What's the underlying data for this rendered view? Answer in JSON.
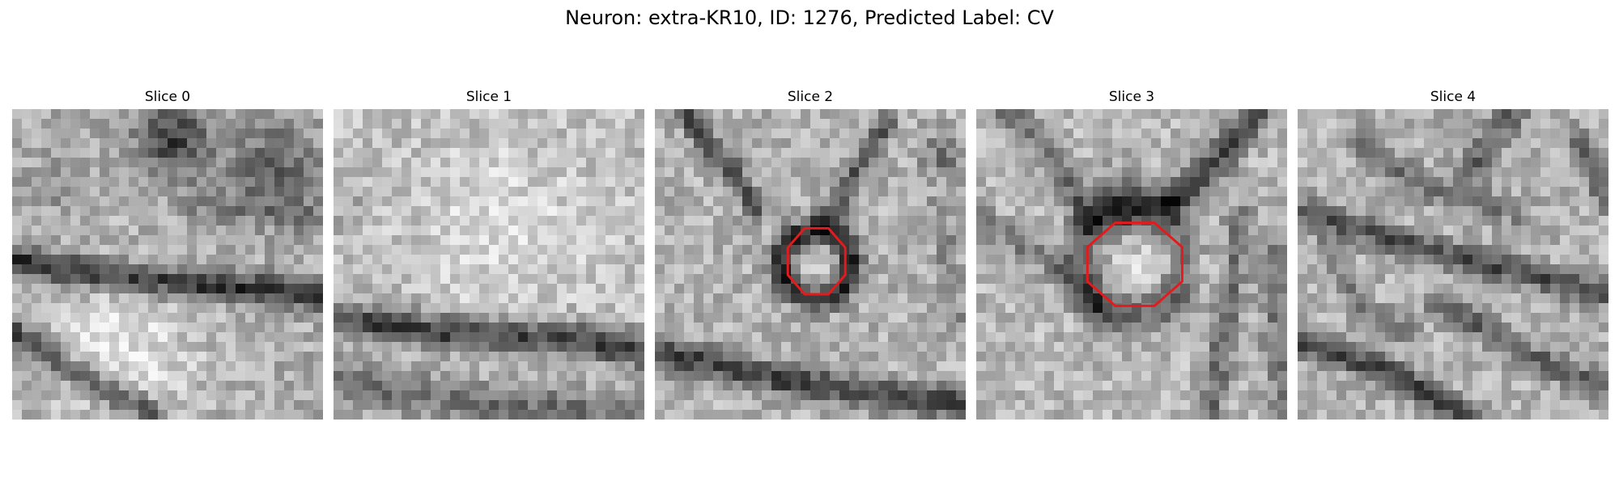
{
  "figure": {
    "title": "Neuron: extra-KR10, ID: 1276, Predicted Label: CV",
    "colormap": "gray",
    "outline_color": "#e41a1c",
    "grid_size": 32
  },
  "panels": [
    {
      "title": "Slice 0",
      "has_outline": false
    },
    {
      "title": "Slice 1",
      "has_outline": false
    },
    {
      "title": "Slice 2",
      "has_outline": true
    },
    {
      "title": "Slice 3",
      "has_outline": true
    },
    {
      "title": "Slice 4",
      "has_outline": false
    }
  ]
}
